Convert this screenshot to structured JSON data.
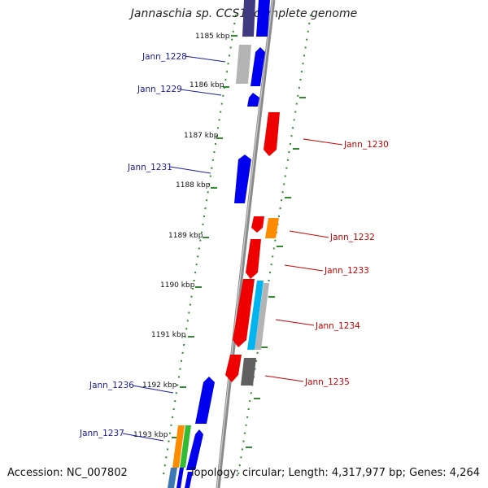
{
  "header": {
    "title": "Jannaschia sp. CCS1, complete genome"
  },
  "footer": {
    "accession": "Accession: NC_007802",
    "topology": "Topology: circular; Length: 4,317,977 bp; Genes: 4,264"
  },
  "colors": {
    "backbone": "#8a8a8a",
    "ruler": "#2e8b2e",
    "forward_label": "#1a1aa6",
    "reverse_label": "#cc0000",
    "blue": "#0000ee",
    "red": "#ee0000",
    "orange": "#ff8c00",
    "green": "#33bb33",
    "cyan": "#00b4f0",
    "gray": "#b4b4b4",
    "dark_gray": "#606060",
    "navy": "#403a80"
  },
  "kbp_ticks": [
    "1185 kbp",
    "1186 kbp",
    "1187 kbp",
    "1188 kbp",
    "1189 kbp",
    "1190 kbp",
    "1191 kbp",
    "1192 kbp",
    "1193 kbp"
  ],
  "labels_left": [
    "Jann_1228",
    "Jann_1229",
    "Jann_1231",
    "Jann_1236",
    "Jann_1237"
  ],
  "labels_right": [
    "Jann_1230",
    "Jann_1232",
    "Jann_1233",
    "Jann_1234",
    "Jann_1235"
  ]
}
